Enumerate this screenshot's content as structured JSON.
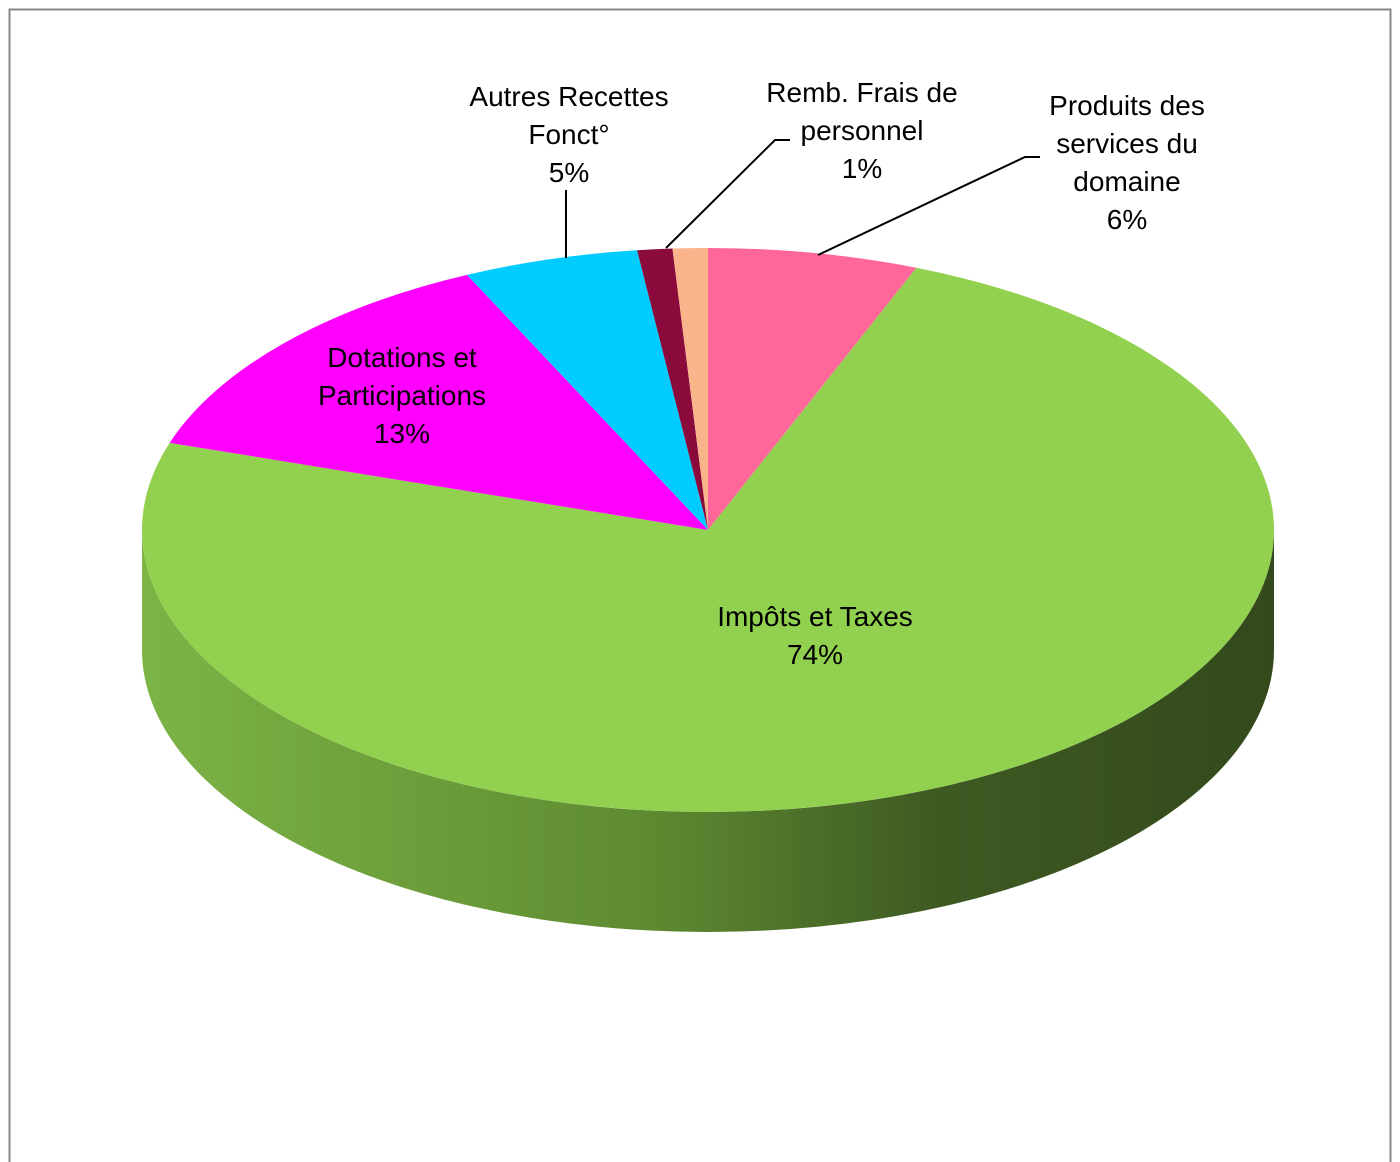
{
  "chart_data": {
    "type": "pie3d",
    "categories": [
      "Produits des\nservices du\ndomaine",
      "Impôts et Taxes",
      "Dotations et\nParticipations",
      "Autres Recettes\nFonct°",
      "Remb. Frais de\npersonnel",
      null
    ],
    "values": [
      6,
      74,
      13,
      5,
      1,
      1
    ],
    "value_labels": [
      "6%",
      "74%",
      "13%",
      "5%",
      "1%",
      null
    ],
    "colors": [
      "#ff6699",
      "#92d050",
      "#ff00ff",
      "#00ccff",
      "#8b0a3c",
      "#fab48c"
    ]
  }
}
